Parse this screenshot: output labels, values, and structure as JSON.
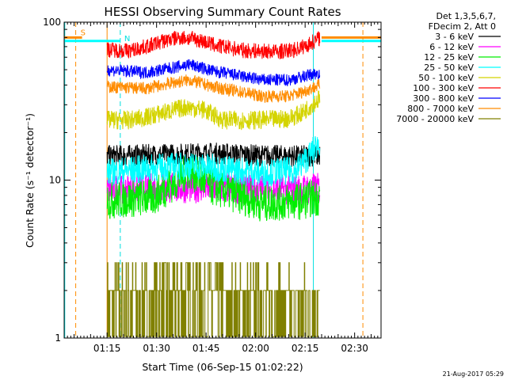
{
  "chart_data": {
    "type": "line",
    "title": "HESSI Observing Summary Count Rates",
    "xlabel": "Start Time (06-Sep-15 01:02:22)",
    "ylabel": "Count Rate (s⁻¹ detector⁻¹)",
    "xlim_minutes": [
      0,
      96
    ],
    "x_tick_minutes": [
      13,
      28,
      43,
      58,
      73,
      88
    ],
    "x_tick_labels": [
      "01:15",
      "01:30",
      "01:45",
      "02:00",
      "02:15",
      "02:30"
    ],
    "y_scale": "log",
    "ylim": [
      1,
      100
    ],
    "y_ticks": [
      1,
      10,
      100
    ],
    "y_tick_labels": [
      "1",
      "10",
      "100"
    ],
    "grid": false,
    "legend_position": "top-right",
    "legend_header": [
      "Det 1,3,5,6,7,",
      "FDecim 2, Att 0"
    ],
    "data_window_minutes": [
      13,
      77.5
    ],
    "markers": [
      {
        "label": "S",
        "color": "#ff8c00",
        "solid_minute": 13,
        "dashed_minutes": [
          3.5,
          90.5
        ]
      },
      {
        "label": "N",
        "color": "#00e0e0",
        "solid_minute": 75.5,
        "dashed_minutes": [
          17
        ]
      }
    ],
    "night_bar_levels": {
      "orange": 80,
      "cyan": 76
    },
    "series": [
      {
        "name": "3 - 6 keV",
        "color": "#000000",
        "noise": 0.07,
        "points": [
          [
            13,
            14.2
          ],
          [
            30,
            14.5
          ],
          [
            45,
            14.8
          ],
          [
            60,
            14.3
          ],
          [
            72,
            14.2
          ],
          [
            77.5,
            14.3
          ]
        ]
      },
      {
        "name": "6 - 12 keV",
        "color": "#ff00ff",
        "noise": 0.1,
        "points": [
          [
            13,
            8.7
          ],
          [
            30,
            8.9
          ],
          [
            45,
            9.0
          ],
          [
            60,
            8.7
          ],
          [
            72,
            8.7
          ],
          [
            77.5,
            8.9
          ]
        ]
      },
      {
        "name": "12 - 25 keV",
        "color": "#00ee00",
        "noise": 0.12,
        "points": [
          [
            13,
            7.4
          ],
          [
            27,
            7.8
          ],
          [
            33,
            9.5
          ],
          [
            38,
            11.5
          ],
          [
            45,
            9.0
          ],
          [
            60,
            7.1
          ],
          [
            72,
            7.4
          ],
          [
            77.5,
            7.8
          ]
        ]
      },
      {
        "name": "25 - 50 keV",
        "color": "#00ffff",
        "noise": 0.09,
        "points": [
          [
            13,
            11.2
          ],
          [
            30,
            12.1
          ],
          [
            38,
            12.3
          ],
          [
            45,
            12.0
          ],
          [
            60,
            11.1
          ],
          [
            70,
            11.5
          ],
          [
            74,
            14.0
          ],
          [
            77.5,
            17.5
          ]
        ]
      },
      {
        "name": "50 - 100 keV",
        "color": "#d4d400",
        "noise": 0.06,
        "points": [
          [
            13,
            24
          ],
          [
            20,
            24
          ],
          [
            25,
            25
          ],
          [
            31,
            27
          ],
          [
            37,
            29
          ],
          [
            42,
            28
          ],
          [
            48,
            24
          ],
          [
            60,
            24
          ],
          [
            68,
            24.5
          ],
          [
            72,
            26.5
          ],
          [
            75,
            30
          ],
          [
            77.5,
            33
          ]
        ]
      },
      {
        "name": "100 - 300 keV",
        "color": "#ff0000",
        "noise": 0.05,
        "points": [
          [
            13,
            67
          ],
          [
            20,
            66
          ],
          [
            26,
            71
          ],
          [
            30,
            76
          ],
          [
            35,
            80
          ],
          [
            40,
            78
          ],
          [
            46,
            71
          ],
          [
            55,
            66
          ],
          [
            65,
            65
          ],
          [
            70,
            67
          ],
          [
            74,
            72
          ],
          [
            77.5,
            80
          ]
        ]
      },
      {
        "name": "300 - 800 keV",
        "color": "#0000ff",
        "noise": 0.04,
        "points": [
          [
            13,
            50
          ],
          [
            25,
            48
          ],
          [
            32,
            51
          ],
          [
            38,
            54
          ],
          [
            45,
            49
          ],
          [
            60,
            43
          ],
          [
            68,
            43
          ],
          [
            72,
            45
          ],
          [
            77.5,
            48
          ]
        ]
      },
      {
        "name": "800 - 7000 keV",
        "color": "#ff8c00",
        "noise": 0.04,
        "points": [
          [
            13,
            39
          ],
          [
            25,
            38
          ],
          [
            32,
            41
          ],
          [
            38,
            43
          ],
          [
            45,
            39
          ],
          [
            60,
            34
          ],
          [
            68,
            34
          ],
          [
            72,
            36
          ],
          [
            77.5,
            40
          ]
        ]
      },
      {
        "name": "7000 - 20000 keV",
        "color": "#808000",
        "noise": 0,
        "points": [
          [
            13,
            2
          ],
          [
            77.5,
            2
          ]
        ]
      }
    ],
    "timestamp": "21-Aug-2017 05:29"
  }
}
